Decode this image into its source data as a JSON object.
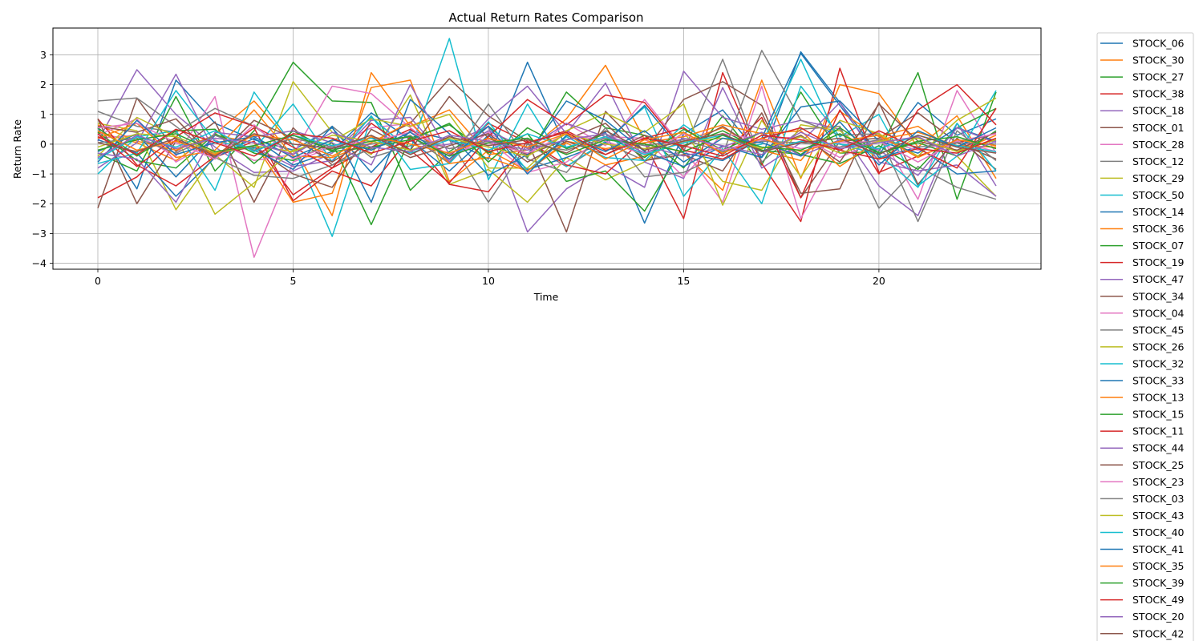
{
  "chart_data": {
    "type": "line",
    "title": "Actual Return Rates Comparison",
    "xlabel": "Time",
    "ylabel": "Return Rate",
    "xlim": [
      -1.15,
      24.15
    ],
    "ylim": [
      -4.2,
      3.9
    ],
    "xticks": [
      0,
      5,
      10,
      15,
      20
    ],
    "yticks": [
      -4,
      -3,
      -2,
      -1,
      0,
      1,
      2,
      3
    ],
    "grid": true,
    "legend": "outside-right",
    "x": [
      0,
      1,
      2,
      3,
      4,
      5,
      6,
      7,
      8,
      9,
      10,
      11,
      12,
      13,
      14,
      15,
      16,
      17,
      18,
      19,
      20,
      21,
      22,
      23
    ],
    "series": [
      {
        "name": "STOCK_06",
        "color": "#1f77b4",
        "values": [
          0.55,
          -1.5,
          2.15,
          0.7,
          0.15,
          -0.2,
          0.55,
          -0.95,
          0.45,
          0.15,
          -0.5,
          2.75,
          -0.15,
          0.4,
          -2.65,
          0.35,
          1.15,
          -0.45,
          3.1,
          1.4,
          -0.35,
          1.4,
          0.3,
          0.85
        ]
      },
      {
        "name": "STOCK_30",
        "color": "#ff7f0e",
        "values": [
          0.4,
          0.05,
          -0.55,
          0.35,
          1.45,
          -0.05,
          -2.4,
          2.4,
          0.6,
          1.15,
          -0.35,
          -0.2,
          0.85,
          2.65,
          0.15,
          -0.3,
          -1.55,
          2.15,
          -1.15,
          2.0,
          1.7,
          -0.1,
          0.95,
          -1.15
        ]
      },
      {
        "name": "STOCK_27",
        "color": "#2ca02c",
        "values": [
          -0.3,
          -0.9,
          1.6,
          -0.9,
          0.45,
          2.75,
          1.45,
          1.4,
          -1.55,
          -0.25,
          0.6,
          -0.45,
          1.75,
          0.55,
          0.3,
          -0.8,
          0.95,
          -0.7,
          1.75,
          -0.3,
          -0.25,
          2.4,
          -1.85,
          1.75
        ]
      },
      {
        "name": "STOCK_38",
        "color": "#d62728",
        "values": [
          -1.8,
          -1.1,
          0.15,
          -0.45,
          0.1,
          -1.7,
          -0.8,
          -0.1,
          0.5,
          -0.4,
          0.7,
          0.05,
          0.45,
          -0.2,
          0.05,
          -2.5,
          2.4,
          -0.65,
          -2.6,
          2.55,
          -0.95,
          -0.4,
          0.05,
          0.35
        ]
      },
      {
        "name": "STOCK_18",
        "color": "#9467bd",
        "values": [
          0.1,
          2.5,
          1.0,
          -0.1,
          -0.95,
          -0.9,
          -0.3,
          0.9,
          -0.2,
          0.0,
          0.6,
          -2.95,
          -1.5,
          -0.7,
          -1.45,
          2.45,
          0.9,
          0.5,
          0.8,
          0.5,
          -1.4,
          -2.4,
          0.7,
          -1.4
        ]
      },
      {
        "name": "STOCK_01",
        "color": "#8c564b",
        "values": [
          -2.15,
          1.55,
          -0.25,
          0.75,
          -1.95,
          0.55,
          -0.7,
          0.05,
          0.7,
          2.2,
          0.95,
          0.1,
          -2.95,
          1.1,
          -0.25,
          1.5,
          2.1,
          1.3,
          -1.8,
          0.1,
          0.2,
          1.05,
          0.05,
          -0.5
        ]
      },
      {
        "name": "STOCK_28",
        "color": "#e377c2",
        "values": [
          0.2,
          0.3,
          -0.4,
          1.6,
          -3.8,
          -0.6,
          -0.1,
          0.55,
          0.7,
          -0.55,
          0.4,
          -0.4,
          0.7,
          -0.05,
          1.5,
          -0.15,
          -1.95,
          1.95,
          -2.5,
          -0.1,
          0.4,
          -1.85,
          1.8,
          -0.3
        ]
      },
      {
        "name": "STOCK_12",
        "color": "#7f7f7f",
        "values": [
          1.1,
          0.6,
          0.4,
          1.2,
          0.6,
          -0.35,
          0.6,
          -0.45,
          -0.05,
          0.15,
          -1.95,
          0.0,
          -0.75,
          0.05,
          -0.55,
          -0.25,
          2.85,
          -0.6,
          0.5,
          0.6,
          -2.15,
          -0.75,
          -1.45,
          -1.85
        ]
      },
      {
        "name": "STOCK_29",
        "color": "#bcbd22",
        "values": [
          0.7,
          0.45,
          -2.2,
          -0.35,
          -1.45,
          2.1,
          0.4,
          -0.35,
          1.65,
          -1.35,
          -0.85,
          -1.95,
          -0.45,
          -1.2,
          -0.6,
          0.4,
          -1.25,
          -1.55,
          0.65,
          0.45,
          -0.5,
          0.25,
          -0.4,
          -1.75
        ]
      },
      {
        "name": "STOCK_50",
        "color": "#17becf",
        "values": [
          -1.0,
          0.25,
          0.45,
          -1.55,
          1.75,
          -0.05,
          -3.1,
          0.9,
          -0.2,
          3.55,
          -1.2,
          1.35,
          -0.75,
          0.1,
          1.25,
          -1.75,
          -0.15,
          -2.0,
          1.95,
          0.25,
          1.0,
          -1.4,
          -0.4,
          1.8
        ]
      },
      {
        "name": "STOCK_14",
        "color": "#1f77b4",
        "values": [
          0.15,
          -0.3,
          -1.75,
          -0.45,
          0.2,
          -0.7,
          -0.25,
          1.05,
          0.15,
          -0.9,
          0.3,
          -0.85,
          -0.45,
          0.05,
          1.3,
          -0.3,
          -0.55,
          0.2,
          3.05,
          1.3,
          -0.45,
          -0.1,
          -1.0,
          -0.9
        ]
      },
      {
        "name": "STOCK_36",
        "color": "#ff7f0e",
        "values": [
          0.65,
          0.1,
          -0.2,
          0.3,
          0.05,
          -1.95,
          -1.65,
          1.9,
          2.15,
          -1.25,
          -0.2,
          -0.9,
          0.05,
          -0.7,
          -0.4,
          0.1,
          0.55,
          -0.2,
          -0.55,
          1.1,
          0.25,
          0.6,
          -0.25,
          0.3
        ]
      },
      {
        "name": "STOCK_07",
        "color": "#2ca02c",
        "values": [
          0.4,
          -0.55,
          -0.8,
          0.35,
          -0.3,
          -0.55,
          0.05,
          -2.7,
          0.2,
          0.65,
          -0.3,
          0.35,
          -1.25,
          -0.9,
          -2.25,
          -0.05,
          0.45,
          -0.2,
          -0.35,
          -0.65,
          -0.05,
          -0.85,
          0.55,
          1.2
        ]
      },
      {
        "name": "STOCK_19",
        "color": "#d62728",
        "values": [
          0.85,
          -0.7,
          -1.4,
          -0.4,
          0.55,
          -1.9,
          -0.9,
          -1.4,
          0.25,
          -1.35,
          -1.6,
          0.1,
          -0.7,
          -1.0,
          0.2,
          0.55,
          -0.35,
          0.9,
          -1.8,
          1.15,
          -1.0,
          1.15,
          2.0,
          0.65
        ]
      },
      {
        "name": "STOCK_47",
        "color": "#9467bd",
        "values": [
          -0.8,
          0.05,
          2.35,
          -0.3,
          -0.1,
          -0.75,
          -0.55,
          0.8,
          0.9,
          -0.6,
          0.85,
          1.95,
          0.35,
          2.05,
          -0.6,
          -1.15,
          1.9,
          -0.8,
          0.05,
          1.4,
          -0.6,
          -0.9,
          -0.7,
          -1.75
        ]
      },
      {
        "name": "STOCK_34",
        "color": "#8c564b",
        "values": [
          0.85,
          -2.0,
          0.1,
          -0.3,
          -0.1,
          -1.0,
          -1.45,
          0.5,
          -0.2,
          1.6,
          0.2,
          -0.35,
          0.15,
          0.7,
          -0.55,
          -0.35,
          -0.9,
          1.05,
          -1.65,
          -1.5,
          1.4,
          -1.35,
          0.2,
          -0.85
        ]
      },
      {
        "name": "STOCK_04",
        "color": "#e377c2",
        "values": [
          0.3,
          0.85,
          -0.6,
          0.15,
          -0.55,
          -0.35,
          1.95,
          1.7,
          0.55,
          -0.4,
          0.15,
          -0.95,
          -0.6,
          0.25,
          0.2,
          -1.1,
          0.35,
          0.15,
          0.25,
          -0.45,
          0.15,
          -0.2,
          0.1,
          -0.25
        ]
      },
      {
        "name": "STOCK_45",
        "color": "#7f7f7f",
        "values": [
          1.45,
          1.55,
          0.6,
          -0.45,
          -1.05,
          -1.15,
          -0.7,
          -0.15,
          0.3,
          -0.65,
          1.35,
          -0.5,
          -0.95,
          0.55,
          -1.1,
          -0.95,
          -0.35,
          3.15,
          0.8,
          0.3,
          0.35,
          -2.6,
          0.45,
          -0.55
        ]
      },
      {
        "name": "STOCK_26",
        "color": "#bcbd22",
        "values": [
          -0.4,
          0.9,
          0.25,
          -2.35,
          -1.3,
          -0.2,
          0.1,
          0.85,
          0.6,
          1.0,
          -0.8,
          -0.8,
          0.45,
          1.05,
          0.4,
          1.35,
          -2.05,
          0.8,
          -1.1,
          0.8,
          0.35,
          -0.4,
          0.8,
          1.55
        ]
      },
      {
        "name": "STOCK_32",
        "color": "#17becf",
        "values": [
          -0.65,
          -0.3,
          1.8,
          0.1,
          -0.15,
          1.35,
          -0.6,
          0.95,
          -0.85,
          -0.65,
          0.75,
          -0.9,
          0.25,
          -0.45,
          -0.55,
          0.65,
          -0.25,
          0.0,
          2.85,
          0.0,
          -0.35,
          -1.45,
          0.7,
          -0.9
        ]
      },
      {
        "name": "STOCK_33",
        "color": "#1f77b4",
        "values": [
          -0.25,
          0.35,
          -1.1,
          0.3,
          -0.2,
          -0.85,
          0.6,
          -1.95,
          1.5,
          0.35,
          -1.05,
          -0.35,
          1.45,
          0.8,
          -0.25,
          -0.75,
          -0.05,
          -0.45,
          1.25,
          1.45,
          0.1,
          -0.3,
          0.55,
          0.1
        ]
      },
      {
        "name": "STOCK_13",
        "color": "#ff7f0e",
        "values": [
          0.2,
          0.7,
          -0.45,
          -0.2,
          1.15,
          -0.4,
          -0.45,
          0.05,
          0.75,
          -0.65,
          -0.45,
          -0.9,
          0.1,
          -0.15,
          0.05,
          0.25,
          0.65,
          0.35,
          0.45,
          -0.75,
          0.15,
          0.4,
          -0.05,
          -0.1
        ]
      },
      {
        "name": "STOCK_15",
        "color": "#2ca02c",
        "values": [
          0.55,
          -0.4,
          0.45,
          0.5,
          -0.65,
          0.45,
          -0.25,
          -0.1,
          0.15,
          0.7,
          -0.6,
          0.55,
          -0.15,
          0.35,
          -0.45,
          0.5,
          -0.2,
          0.4,
          -0.35,
          0.55,
          -0.3,
          0.05,
          -0.4,
          0.45
        ]
      },
      {
        "name": "STOCK_11",
        "color": "#d62728",
        "values": [
          0.35,
          -0.75,
          0.25,
          1.05,
          0.6,
          -0.1,
          -0.8,
          0.7,
          -0.2,
          -1.3,
          0.25,
          1.5,
          0.65,
          1.65,
          1.4,
          -0.2,
          -0.5,
          0.2,
          0.55,
          -0.2,
          -0.5,
          -0.15,
          -0.8,
          1.2
        ]
      },
      {
        "name": "STOCK_44",
        "color": "#9467bd",
        "values": [
          -0.3,
          -0.5,
          -1.95,
          0.4,
          0.25,
          0.45,
          0.05,
          -0.7,
          2.0,
          -0.35,
          0.45,
          -0.15,
          0.7,
          0.25,
          -0.05,
          -0.4,
          -0.1,
          0.4,
          -0.4,
          0.15,
          -0.2,
          -1.05,
          0.55,
          0.05
        ]
      },
      {
        "name": "STOCK_25",
        "color": "#8c564b",
        "values": [
          0.6,
          0.4,
          0.85,
          -0.5,
          0.8,
          0.2,
          -0.6,
          0.25,
          -0.45,
          -0.05,
          0.35,
          -0.6,
          0.1,
          -0.35,
          0.3,
          -0.1,
          0.6,
          -0.25,
          0.3,
          -0.6,
          1.35,
          0.1,
          -0.2,
          0.4
        ]
      },
      {
        "name": "STOCK_23",
        "color": "#e377c2",
        "values": [
          0.55,
          0.7,
          0.05,
          -0.5,
          0.65,
          -0.5,
          -0.05,
          0.1,
          0.4,
          -0.15,
          0.05,
          -0.3,
          0.35,
          0.1,
          -0.35,
          0.35,
          -0.2,
          0.15,
          -0.15,
          0.05,
          0.1,
          -0.6,
          0.1,
          0.35
        ]
      },
      {
        "name": "STOCK_03",
        "color": "#7f7f7f",
        "values": [
          0.05,
          0.2,
          -0.3,
          0.3,
          -0.2,
          0.2,
          -0.1,
          0.0,
          0.25,
          -0.15,
          0.1,
          0.0,
          -0.2,
          0.2,
          -0.05,
          0.15,
          -0.25,
          0.1,
          0.05,
          -0.1,
          0.15,
          -0.1,
          0.05,
          0.0
        ]
      },
      {
        "name": "STOCK_43",
        "color": "#bcbd22",
        "values": [
          -0.1,
          0.35,
          0.25,
          -0.3,
          -0.05,
          -0.25,
          0.3,
          0.1,
          -0.2,
          0.2,
          -0.1,
          -0.4,
          0.35,
          0.0,
          -0.15,
          0.1,
          0.2,
          -0.15,
          0.25,
          -0.3,
          0.1,
          0.2,
          -0.25,
          0.15
        ]
      },
      {
        "name": "STOCK_40",
        "color": "#17becf",
        "values": [
          -0.5,
          0.25,
          -0.1,
          0.45,
          -0.25,
          0.3,
          -0.05,
          0.2,
          -0.3,
          0.15,
          -0.2,
          0.35,
          -0.1,
          0.25,
          -0.35,
          0.05,
          0.3,
          -0.25,
          0.1,
          0.0,
          -0.15,
          0.3,
          -0.05,
          -0.25
        ]
      },
      {
        "name": "STOCK_41",
        "color": "#1f77b4",
        "values": [
          -0.6,
          0.8,
          -0.35,
          0.05,
          0.25,
          -0.45,
          0.15,
          -0.2,
          0.4,
          -0.5,
          0.6,
          -1.0,
          0.3,
          -0.25,
          0.45,
          -0.6,
          0.2,
          0.05,
          -0.4,
          0.75,
          -0.7,
          0.45,
          -0.1,
          0.55
        ]
      },
      {
        "name": "STOCK_35",
        "color": "#ff7f0e",
        "values": [
          0.45,
          -0.2,
          0.1,
          -0.35,
          0.3,
          0.15,
          -0.4,
          0.25,
          0.0,
          -0.3,
          0.2,
          -0.1,
          0.35,
          -0.5,
          0.15,
          0.4,
          -0.3,
          0.2,
          -0.25,
          0.1,
          0.3,
          -0.45,
          0.15,
          -0.05
        ]
      },
      {
        "name": "STOCK_39",
        "color": "#2ca02c",
        "values": [
          -0.2,
          0.15,
          0.35,
          -0.25,
          -0.05,
          0.3,
          -0.2,
          0.1,
          0.25,
          -0.4,
          0.05,
          0.2,
          -0.35,
          0.15,
          0.0,
          -0.25,
          0.3,
          -0.1,
          -0.2,
          0.35,
          -0.3,
          0.1,
          0.25,
          -0.15
        ]
      },
      {
        "name": "STOCK_49",
        "color": "#d62728",
        "values": [
          0.25,
          -0.35,
          0.5,
          0.05,
          -0.4,
          0.35,
          0.2,
          -0.3,
          0.1,
          0.45,
          -0.25,
          0.05,
          0.4,
          -0.35,
          0.2,
          -0.05,
          -0.4,
          0.3,
          0.15,
          -0.2,
          0.45,
          -0.15,
          -0.3,
          0.2
        ]
      },
      {
        "name": "STOCK_20",
        "color": "#9467bd",
        "values": [
          -0.45,
          0.3,
          -0.15,
          0.2,
          0.05,
          -0.35,
          0.4,
          -0.1,
          -0.25,
          0.3,
          0.1,
          -0.2,
          0.15,
          0.35,
          -0.3,
          0.2,
          -0.05,
          -0.35,
          0.4,
          -0.15,
          0.05,
          0.25,
          -0.4,
          0.1
        ]
      },
      {
        "name": "STOCK_42",
        "color": "#8c564b",
        "values": [
          0.05,
          -0.25,
          0.2,
          -0.4,
          0.35,
          0.0,
          -0.15,
          0.3,
          -0.35,
          0.25,
          -0.05,
          0.15,
          -0.3,
          0.45,
          -0.2,
          0.1,
          0.35,
          -0.25,
          0.05,
          0.2,
          -0.35,
          0.3,
          -0.1,
          -0.3
        ]
      }
    ]
  }
}
